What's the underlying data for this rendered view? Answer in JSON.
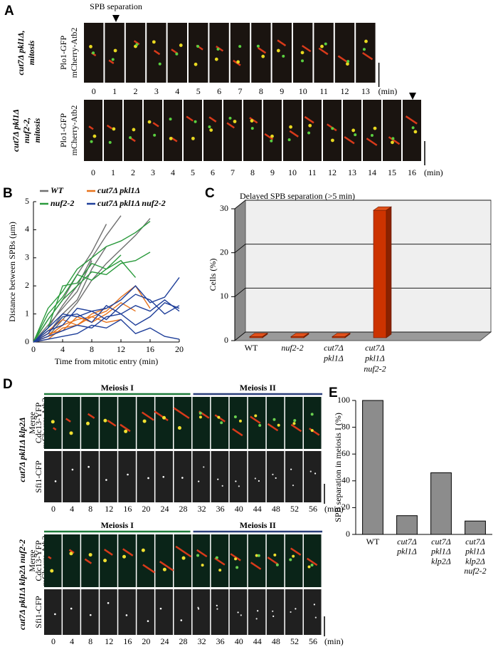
{
  "panels": {
    "A": {
      "label": "A",
      "annotation": "SPB separation",
      "unit": "(min)",
      "channels": [
        "Plo1-GFP",
        "mCherry-Atb2"
      ],
      "rows": [
        {
          "strain": [
            "cut7Δ pkl1Δ,",
            "mitosis"
          ],
          "times": [
            0,
            1,
            2,
            3,
            4,
            5,
            6,
            7,
            8,
            9,
            10,
            11,
            12,
            13
          ]
        },
        {
          "strain": [
            "cut7Δ pkl1Δ",
            "nuf2-2,",
            "mitosis"
          ],
          "times": [
            0,
            1,
            2,
            3,
            4,
            5,
            6,
            7,
            8,
            9,
            10,
            11,
            12,
            13,
            14,
            15,
            16
          ]
        }
      ]
    },
    "D": {
      "label": "D",
      "unit": "(min)",
      "phases": [
        "Meiosis I",
        "Meiosis II"
      ],
      "merge_channels": [
        "Merge",
        "Cdc13-YFP",
        "mCherry-Atb2"
      ],
      "spb_channel": "Sfi1-CFP",
      "times": [
        0,
        4,
        8,
        12,
        16,
        20,
        24,
        28,
        32,
        36,
        40,
        44,
        48,
        52,
        56
      ],
      "rows": [
        {
          "strain": "cut7Δ pkl1Δ klp2Δ"
        },
        {
          "strain": "cut7Δ pkl1Δ klp2Δ nuf2-2"
        }
      ]
    }
  },
  "chart_data": [
    {
      "type": "line",
      "panel_label": "B",
      "xlabel": "Time from mitotic entry (min)",
      "ylabel": "Distance between SPBs (μm)",
      "xlim": [
        0,
        20
      ],
      "xticks": [
        0,
        4,
        8,
        12,
        16,
        20
      ],
      "ylim": [
        0,
        5
      ],
      "yticks": [
        0,
        1,
        2,
        3,
        4,
        5
      ],
      "series": [
        {
          "name": "WT",
          "color": "#707070",
          "lines": [
            {
              "x": [
                0,
                2,
                4,
                6,
                8,
                10,
                12
              ],
              "values": [
                0,
                0.5,
                1.3,
                2,
                3,
                3.8,
                4.5
              ]
            },
            {
              "x": [
                0,
                2,
                4,
                6,
                8,
                10
              ],
              "values": [
                0,
                0.8,
                1.5,
                2.4,
                3.2,
                4.2
              ]
            },
            {
              "x": [
                0,
                2,
                4,
                6,
                8,
                10,
                12,
                14,
                16
              ],
              "values": [
                0,
                0.2,
                0.8,
                1.4,
                2.2,
                2.8,
                3.3,
                3.8,
                4.4
              ]
            },
            {
              "x": [
                0,
                2,
                4,
                6,
                8,
                10
              ],
              "values": [
                0,
                0.3,
                1,
                1.5,
                2.6,
                3.4
              ]
            },
            {
              "x": [
                0,
                2,
                4,
                6,
                8
              ],
              "values": [
                0,
                0.6,
                1.2,
                1.8,
                2.9
              ]
            }
          ]
        },
        {
          "name": "cut7Δ pkl1Δ",
          "color": "#e8731c",
          "lines": [
            {
              "x": [
                0,
                2,
                4,
                6,
                8,
                10,
                12,
                14,
                16
              ],
              "values": [
                0,
                0.2,
                0.6,
                0.8,
                0.9,
                1.1,
                1.6,
                2,
                1.2
              ]
            },
            {
              "x": [
                0,
                2,
                4,
                6,
                8,
                10,
                12,
                14
              ],
              "values": [
                0,
                0.3,
                0.4,
                0.9,
                0.7,
                1,
                1.4,
                1.1
              ]
            },
            {
              "x": [
                0,
                2,
                4,
                6,
                8,
                10
              ],
              "values": [
                0,
                0.1,
                0.5,
                0.6,
                1,
                1.2
              ]
            },
            {
              "x": [
                0,
                2,
                4,
                6,
                8,
                10,
                12
              ],
              "values": [
                0,
                0.4,
                0.8,
                0.6,
                0.9,
                0.7,
                0.8
              ]
            }
          ]
        },
        {
          "name": "nuf2-2",
          "color": "#2a9a3c",
          "lines": [
            {
              "x": [
                0,
                2,
                4,
                6,
                8,
                10,
                12,
                14,
                16
              ],
              "values": [
                0,
                1.2,
                1.8,
                2.6,
                3,
                3.4,
                3.6,
                3.9,
                4.3
              ]
            },
            {
              "x": [
                0,
                2,
                4,
                6,
                8,
                10,
                12,
                14,
                16
              ],
              "values": [
                0,
                0.8,
                1.5,
                2,
                2.5,
                2.4,
                2.8,
                2.9,
                3.2
              ]
            },
            {
              "x": [
                0,
                2,
                4,
                6,
                8,
                10,
                12,
                14
              ],
              "values": [
                0,
                1,
                1.6,
                2.4,
                2.2,
                2.6,
                2.9,
                2.3
              ]
            },
            {
              "x": [
                0,
                2,
                4,
                6,
                8,
                10,
                12
              ],
              "values": [
                0,
                0.5,
                2,
                2.1,
                2.8,
                2.6,
                3.1
              ]
            }
          ]
        },
        {
          "name": "cut7Δ pkl1Δ nuf2-2",
          "color": "#1f3f9a",
          "lines": [
            {
              "x": [
                0,
                2,
                4,
                6,
                8,
                10,
                12,
                14,
                16,
                18,
                20
              ],
              "values": [
                0,
                0.5,
                1,
                0.9,
                1.1,
                1.2,
                1.5,
                2,
                1.4,
                1.6,
                2.3
              ]
            },
            {
              "x": [
                0,
                2,
                4,
                6,
                8,
                10,
                12,
                14,
                16,
                18,
                20
              ],
              "values": [
                0,
                0.2,
                0.4,
                0.6,
                0.5,
                0.9,
                1,
                1.3,
                1.1,
                1.5,
                1.1
              ]
            },
            {
              "x": [
                0,
                2,
                4,
                6,
                8,
                10,
                12,
                14,
                16,
                18,
                20
              ],
              "values": [
                0,
                0.1,
                0.2,
                0.3,
                0.6,
                0.5,
                0.8,
                0.3,
                0.5,
                0.2,
                0.1
              ]
            },
            {
              "x": [
                0,
                2,
                4,
                6,
                8,
                10,
                12,
                14,
                16,
                18,
                20
              ],
              "values": [
                0,
                0.3,
                0.9,
                1,
                0.7,
                1.3,
                1,
                0.6,
                0.9,
                1.4,
                1.2
              ]
            },
            {
              "x": [
                0,
                2,
                4,
                6,
                8,
                10,
                12,
                14,
                16,
                18,
                20
              ],
              "values": [
                0,
                0.4,
                0.6,
                1.2,
                1.1,
                0.8,
                1.3,
                1.7,
                1.5,
                1,
                1.3
              ]
            }
          ]
        }
      ]
    },
    {
      "type": "bar3d",
      "panel_label": "C",
      "title": "Delayed SPB separation (>5 min)",
      "ylabel": "Cells (%)",
      "categories": [
        "WT",
        "nuf2-2",
        "cut7Δ pkl1Δ",
        "cut7Δ pkl1Δ nuf2-2"
      ],
      "values": [
        0,
        0,
        0,
        29
      ],
      "color": "#cc3300",
      "ylim": [
        0,
        30
      ],
      "yticks": [
        0,
        10,
        20,
        30
      ],
      "grid": true
    },
    {
      "type": "bar",
      "panel_label": "E",
      "ylabel": "SPB separation in meiosis I (%)",
      "categories": [
        "WT",
        "cut7Δ pkl1Δ",
        "cut7Δ pkl1Δ klp2Δ",
        "cut7Δ pkl1Δ klp2Δ nuf2-2"
      ],
      "values": [
        100,
        14,
        46,
        10
      ],
      "color": "#8c8c8c",
      "ylim": [
        0,
        100
      ],
      "yticks": [
        0,
        20,
        40,
        60,
        80,
        100
      ]
    }
  ]
}
